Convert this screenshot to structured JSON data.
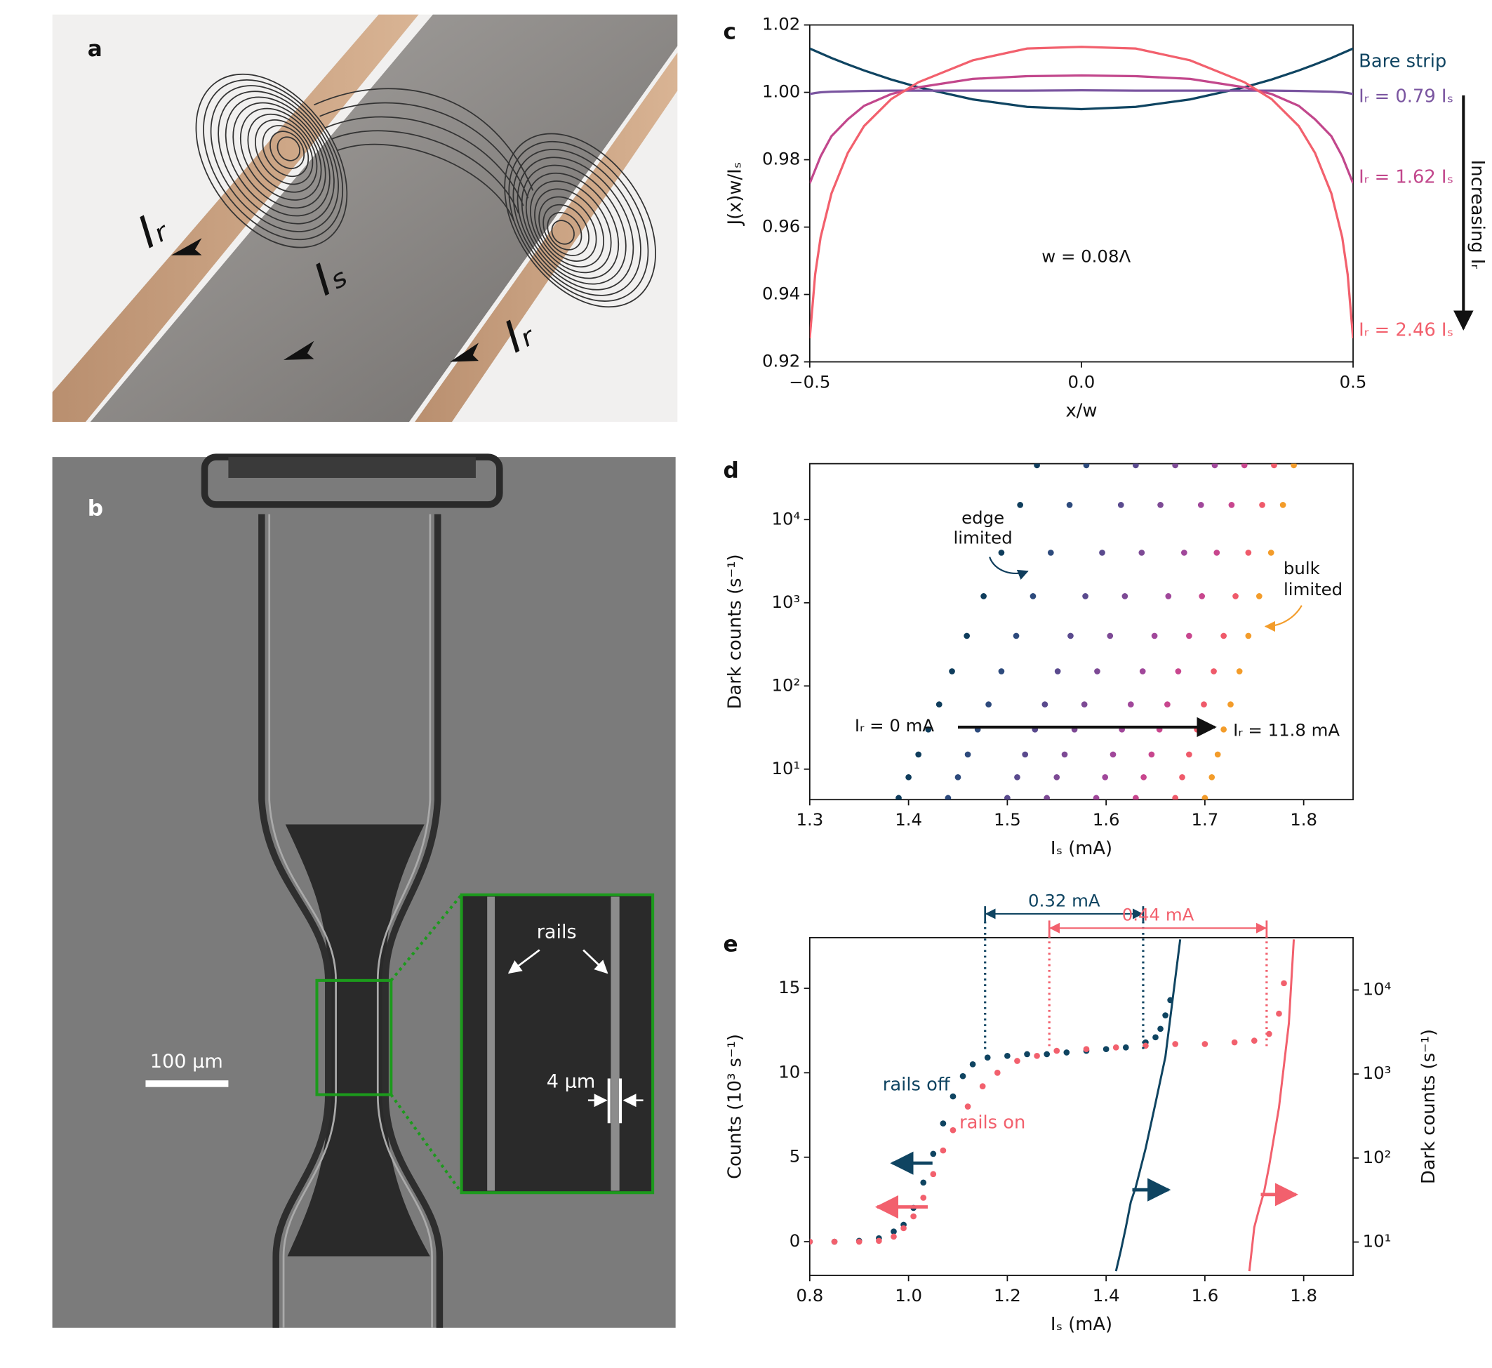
{
  "figure": {
    "panel_a": {
      "label": "a",
      "current_labels": [
        "Iᵣ",
        "Iₛ",
        "Iᵣ"
      ]
    },
    "panel_b": {
      "label": "b",
      "scale_bar": "100 µm",
      "inset_labels": [
        "rails",
        "4 µm"
      ]
    }
  },
  "chart_data": [
    {
      "panel_label": "c",
      "type": "line",
      "x": [
        -0.5,
        -0.49,
        -0.48,
        -0.46,
        -0.43,
        -0.4,
        -0.35,
        -0.3,
        -0.2,
        -0.1,
        0,
        0.1,
        0.2,
        0.3,
        0.35,
        0.4,
        0.43,
        0.46,
        0.48,
        0.49,
        0.5
      ],
      "series": [
        {
          "name": "Bare strip",
          "color": "#0f4461",
          "values": [
            1.013,
            1.0123,
            1.0116,
            1.0102,
            1.0083,
            1.0065,
            1.0038,
            1.0015,
            0.9979,
            0.9957,
            0.995,
            0.9957,
            0.9979,
            1.0015,
            1.0038,
            1.0065,
            1.0083,
            1.0102,
            1.0116,
            1.0123,
            1.013
          ]
        },
        {
          "name": "Iᵣ = 0.79 Iₛ",
          "color": "#7a55a0",
          "values": [
            0.9995,
            0.9998,
            1.0,
            1.0002,
            1.0003,
            1.0004,
            1.0005,
            1.0005,
            1.0005,
            1.0005,
            1.0006,
            1.0005,
            1.0005,
            1.0005,
            1.0005,
            1.0004,
            1.0003,
            1.0002,
            1.0,
            0.9998,
            0.9995
          ]
        },
        {
          "name": "Iᵣ = 1.62 Iₛ",
          "color": "#c2478c",
          "values": [
            0.973,
            0.977,
            0.981,
            0.987,
            0.992,
            0.996,
            0.9995,
            1.0015,
            1.004,
            1.0048,
            1.005,
            1.0048,
            1.004,
            1.0015,
            0.9995,
            0.996,
            0.992,
            0.987,
            0.981,
            0.977,
            0.973
          ]
        },
        {
          "name": "Iᵣ = 2.46 Iₛ",
          "color": "#f2606d",
          "values": [
            0.927,
            0.946,
            0.957,
            0.97,
            0.982,
            0.99,
            0.998,
            1.003,
            1.0095,
            1.013,
            1.0135,
            1.013,
            1.0095,
            1.003,
            0.998,
            0.99,
            0.982,
            0.97,
            0.957,
            0.946,
            0.927
          ]
        }
      ],
      "xlim": [
        -0.5,
        0.5
      ],
      "ylim": [
        0.92,
        1.02
      ],
      "xticks": [
        {
          "value": -0.5,
          "label": "−0.5"
        },
        {
          "value": 0,
          "label": "0.0"
        },
        0.5
      ],
      "yticks": [
        0.92,
        0.94,
        0.96,
        0.98,
        {
          "value": 1,
          "label": "1.00"
        },
        1.02
      ],
      "xlabel": "x/w",
      "ylabel": "J(x)w/Iₛ",
      "annotations": [
        "w = 0.08Λ",
        "Increasing Iᵣ"
      ]
    },
    {
      "panel_label": "d",
      "type": "scatter",
      "ylog": true,
      "xlim": [
        1.3,
        1.85
      ],
      "ylim": [
        4.3,
        47000
      ],
      "xticks": [
        1.3,
        1.4,
        1.5,
        1.6,
        1.7,
        1.8
      ],
      "yticks": [
        {
          "value": 10,
          "label": "10¹"
        },
        {
          "value": 100,
          "label": "10²"
        },
        {
          "value": 1000,
          "label": "10³"
        },
        {
          "value": 10000,
          "label": "10⁴"
        }
      ],
      "xlabel": "Iₛ (mA)",
      "ylabel": "Dark counts (s⁻¹)",
      "series": [
        {
          "color": "#0f3d5c",
          "x": [
            1.39,
            1.4,
            1.41,
            1.42,
            1.431,
            1.444,
            1.459,
            1.476,
            1.494,
            1.513,
            1.53
          ],
          "values": [
            4.5,
            8,
            15,
            30,
            60,
            150,
            400,
            1200,
            4000,
            15000,
            45000
          ]
        },
        {
          "color": "#2d4a7c",
          "x": [
            1.44,
            1.45,
            1.46,
            1.47,
            1.481,
            1.494,
            1.509,
            1.526,
            1.544,
            1.563,
            1.58
          ],
          "values": [
            4.5,
            8,
            15,
            30,
            60,
            150,
            400,
            1200,
            4000,
            15000,
            45000
          ]
        },
        {
          "color": "#5a4a8e",
          "x": [
            1.5,
            1.51,
            1.518,
            1.528,
            1.538,
            1.551,
            1.564,
            1.579,
            1.596,
            1.615,
            1.63
          ],
          "values": [
            4.5,
            8,
            15,
            30,
            60,
            150,
            400,
            1200,
            4000,
            15000,
            45000
          ]
        },
        {
          "color": "#7d4a95",
          "x": [
            1.54,
            1.55,
            1.558,
            1.568,
            1.578,
            1.591,
            1.604,
            1.619,
            1.636,
            1.655,
            1.67
          ],
          "values": [
            4.5,
            8,
            15,
            30,
            60,
            150,
            400,
            1200,
            4000,
            15000,
            45000
          ]
        },
        {
          "color": "#a0479a",
          "x": [
            1.59,
            1.599,
            1.607,
            1.616,
            1.625,
            1.637,
            1.649,
            1.663,
            1.679,
            1.696,
            1.71
          ],
          "values": [
            4.5,
            8,
            15,
            30,
            60,
            150,
            400,
            1200,
            4000,
            15000,
            45000
          ]
        },
        {
          "color": "#c8468e",
          "x": [
            1.63,
            1.638,
            1.646,
            1.654,
            1.662,
            1.673,
            1.684,
            1.697,
            1.712,
            1.727,
            1.74
          ],
          "values": [
            4.5,
            8,
            15,
            30,
            60,
            150,
            400,
            1200,
            4000,
            15000,
            45000
          ]
        },
        {
          "color": "#ef5a6a",
          "x": [
            1.67,
            1.677,
            1.684,
            1.692,
            1.699,
            1.709,
            1.719,
            1.731,
            1.744,
            1.758,
            1.77
          ],
          "values": [
            4.5,
            8,
            15,
            30,
            60,
            150,
            400,
            1200,
            4000,
            15000,
            45000
          ]
        },
        {
          "color": "#f39c2a",
          "x": [
            1.7,
            1.707,
            1.713,
            1.719,
            1.726,
            1.735,
            1.744,
            1.755,
            1.767,
            1.779,
            1.79
          ],
          "values": [
            4.5,
            8,
            15,
            30,
            60,
            150,
            400,
            1200,
            4000,
            15000,
            45000
          ]
        }
      ],
      "arrow": {
        "x": [
          1.45,
          1.71
        ],
        "y": 32
      },
      "annotations": [
        "edge",
        "limited",
        "bulk",
        "limited",
        "Iᵣ = 0 mA",
        "Iᵣ = 11.8 mA"
      ]
    },
    {
      "panel_label": "e",
      "type": "combo",
      "y2log": true,
      "xlim": [
        0.8,
        1.9
      ],
      "ylim": [
        -2,
        18
      ],
      "y2lim": [
        4,
        42000
      ],
      "xticks": [
        0.8,
        {
          "value": 1,
          "label": "1.0"
        },
        1.2,
        1.4,
        1.6,
        1.8
      ],
      "yticks": [
        0,
        5,
        10,
        15
      ],
      "y2ticks": [
        {
          "value": 10,
          "label": "10¹"
        },
        {
          "value": 100,
          "label": "10²"
        },
        {
          "value": 1000,
          "label": "10³"
        },
        {
          "value": 10000,
          "label": "10⁴"
        }
      ],
      "xlabel": "Iₛ (mA)",
      "ylabel": "Counts (10³ s⁻¹)",
      "y2label": "Dark counts (s⁻¹)",
      "series": [
        {
          "name": "rails off",
          "type": "scatter",
          "color": "#0f4461",
          "x": [
            0.8,
            0.85,
            0.9,
            0.94,
            0.97,
            0.99,
            1.01,
            1.03,
            1.05,
            1.07,
            1.09,
            1.11,
            1.13,
            1.16,
            1.2,
            1.24,
            1.28,
            1.32,
            1.36,
            1.4,
            1.44,
            1.48,
            1.5,
            1.51,
            1.52,
            1.53
          ],
          "values": [
            0,
            0,
            0.05,
            0.2,
            0.6,
            1.0,
            2.0,
            3.5,
            5.2,
            7,
            8.6,
            9.8,
            10.5,
            10.9,
            11.0,
            11.1,
            11.1,
            11.2,
            11.3,
            11.4,
            11.5,
            11.8,
            12.1,
            12.6,
            13.4,
            14.3
          ]
        },
        {
          "name": "rails on",
          "type": "scatter",
          "color": "#f2606d",
          "x": [
            0.8,
            0.85,
            0.9,
            0.94,
            0.97,
            0.99,
            1.01,
            1.03,
            1.05,
            1.07,
            1.09,
            1.12,
            1.15,
            1.18,
            1.22,
            1.26,
            1.3,
            1.36,
            1.42,
            1.48,
            1.54,
            1.6,
            1.66,
            1.7,
            1.73,
            1.75,
            1.76
          ],
          "values": [
            0,
            0,
            0,
            0.05,
            0.3,
            0.8,
            1.5,
            2.6,
            4.0,
            5.4,
            6.6,
            8.0,
            9.2,
            10.0,
            10.7,
            11.0,
            11.3,
            11.4,
            11.5,
            11.6,
            11.7,
            11.7,
            11.8,
            11.9,
            12.3,
            13.5,
            15.3
          ]
        },
        {
          "type": "line",
          "axis": "y2",
          "color": "#0f4461",
          "x": [
            1.42,
            1.43,
            1.44,
            1.45,
            1.46,
            1.48,
            1.5,
            1.52,
            1.55
          ],
          "values": [
            4.5,
            8,
            15,
            30,
            45,
            130,
            450,
            1600,
            40000
          ]
        },
        {
          "type": "line",
          "axis": "y2",
          "color": "#f2606d",
          "x": [
            1.69,
            1.7,
            1.71,
            1.72,
            1.73,
            1.75,
            1.77,
            1.78
          ],
          "values": [
            4.5,
            15,
            25,
            40,
            80,
            400,
            4000,
            40000
          ]
        }
      ],
      "spans": [
        {
          "from": 1.155,
          "to": 1.475,
          "label": "0.32 mA",
          "color": "#0f4461"
        },
        {
          "from": 1.285,
          "to": 1.725,
          "label": "0.44 mA",
          "color": "#f2606d"
        }
      ]
    }
  ]
}
